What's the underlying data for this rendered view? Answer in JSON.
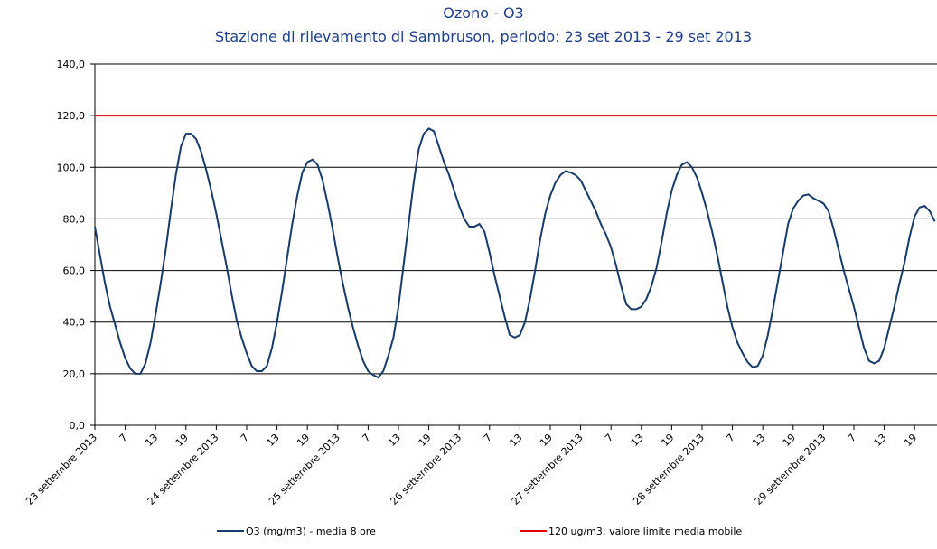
{
  "chart_data": {
    "type": "line",
    "title": "Ozono - O3",
    "subtitle": "Stazione di rilevamento di Sambruson, periodo: 23 set 2013 - 29 set 2013",
    "categories": [
      "23 settembre 2013",
      null,
      null,
      null,
      null,
      null,
      "7",
      null,
      null,
      null,
      null,
      null,
      "13",
      null,
      null,
      null,
      null,
      null,
      "19",
      null,
      null,
      null,
      null,
      null,
      "24 settembre 2013",
      null,
      null,
      null,
      null,
      null,
      "7",
      null,
      null,
      null,
      null,
      null,
      "13",
      null,
      null,
      null,
      null,
      null,
      "19",
      null,
      null,
      null,
      null,
      null,
      "25 settembre 2013",
      null,
      null,
      null,
      null,
      null,
      "7",
      null,
      null,
      null,
      null,
      null,
      "13",
      null,
      null,
      null,
      null,
      null,
      "19",
      null,
      null,
      null,
      null,
      null,
      "26 settembre 2013",
      null,
      null,
      null,
      null,
      null,
      "7",
      null,
      null,
      null,
      null,
      null,
      "13",
      null,
      null,
      null,
      null,
      null,
      "19",
      null,
      null,
      null,
      null,
      null,
      "27 settembre 2013",
      null,
      null,
      null,
      null,
      null,
      "7",
      null,
      null,
      null,
      null,
      null,
      "13",
      null,
      null,
      null,
      null,
      null,
      "19",
      null,
      null,
      null,
      null,
      null,
      "28 settembre 2013",
      null,
      null,
      null,
      null,
      null,
      "7",
      null,
      null,
      null,
      null,
      null,
      "13",
      null,
      null,
      null,
      null,
      null,
      "19",
      null,
      null,
      null,
      null,
      null,
      "29 settembre 2013",
      null,
      null,
      null,
      null,
      null,
      "7",
      null,
      null,
      null,
      null,
      null,
      "13",
      null,
      null,
      null,
      null,
      null,
      "19",
      null,
      null,
      null,
      null
    ],
    "series": [
      {
        "name": "O3 (mg/m3) - media 8 ore",
        "color": "#173b6b",
        "values": [
          77,
          66,
          55,
          46,
          39,
          32,
          26,
          22,
          20,
          20,
          24,
          32,
          43,
          55,
          68,
          83,
          97,
          108,
          113,
          113,
          111,
          106,
          99,
          91,
          82,
          72,
          62,
          51,
          41,
          34,
          28,
          23,
          21,
          21,
          23,
          30,
          40,
          52,
          65,
          78,
          89,
          98,
          102,
          103,
          101,
          95,
          86,
          76,
          65,
          55,
          46,
          38,
          31,
          25,
          21,
          19.5,
          18.5,
          21,
          27,
          34,
          46,
          62,
          78,
          94,
          107,
          113,
          115,
          114,
          108,
          102,
          97,
          91,
          85,
          80,
          77,
          77,
          78,
          75,
          67,
          58,
          50,
          42,
          35,
          34,
          35,
          40,
          49,
          60,
          72,
          82,
          89,
          94,
          97,
          98.5,
          98,
          97,
          95,
          91,
          87,
          83,
          78,
          74,
          69,
          62,
          54,
          47,
          45,
          45,
          46,
          49,
          54,
          61,
          71,
          82,
          91,
          97,
          101,
          102,
          100,
          96,
          90,
          83,
          75,
          66,
          56,
          46,
          38,
          32,
          28,
          24.5,
          22.5,
          23,
          27,
          35,
          45,
          56,
          67,
          78,
          84,
          87,
          89,
          89.5,
          88,
          87,
          86,
          83,
          76,
          68,
          60,
          53,
          46,
          38,
          30,
          25,
          24,
          25,
          30,
          38,
          46,
          55,
          63,
          73,
          81,
          84.5,
          85,
          83,
          79
        ]
      }
    ],
    "limit_line": {
      "name": "120 ug/m3: valore limite media mobile",
      "value": 120,
      "color": "#e00000"
    },
    "ylim": [
      0,
      140
    ],
    "yticks": [
      {
        "value": 0,
        "label": "0,0"
      },
      {
        "value": 20,
        "label": "20,0"
      },
      {
        "value": 40,
        "label": "40,0"
      },
      {
        "value": 60,
        "label": "60,0"
      },
      {
        "value": 80,
        "label": "80,0"
      },
      {
        "value": 100,
        "label": "100,0"
      },
      {
        "value": 120,
        "label": "120,0"
      },
      {
        "value": 140,
        "label": "140,0"
      }
    ],
    "grid": true
  }
}
